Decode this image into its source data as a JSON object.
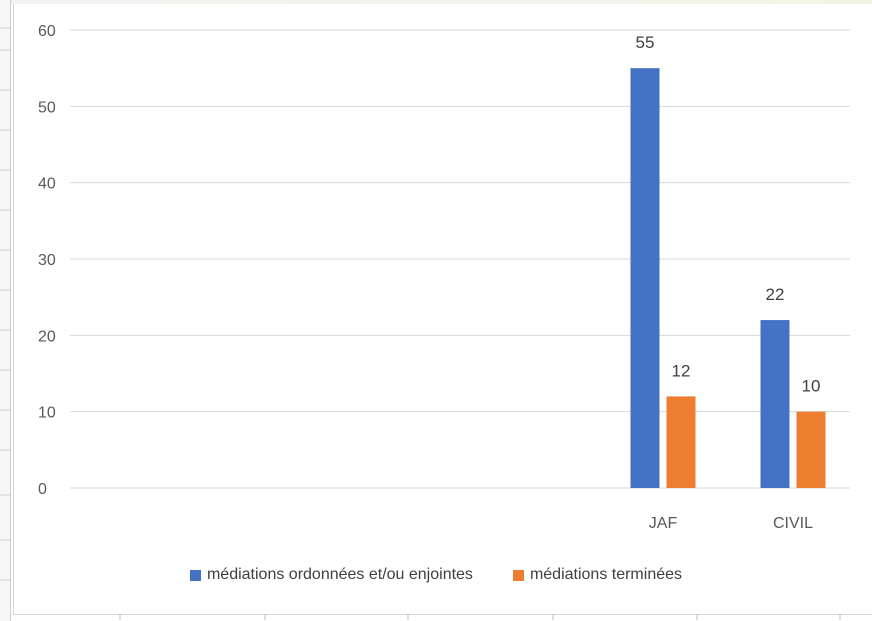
{
  "chart_data": {
    "type": "bar",
    "categories": [
      "",
      "",
      "",
      "",
      "JAF",
      "CIVIL"
    ],
    "series": [
      {
        "name": "médiations ordonnées et/ou enjointes",
        "color": "#4472C4",
        "values": [
          null,
          null,
          null,
          null,
          55,
          22
        ]
      },
      {
        "name": "médiations terminées",
        "color": "#ED7D31",
        "values": [
          null,
          null,
          null,
          null,
          12,
          10
        ]
      }
    ],
    "ylim": [
      0,
      60
    ],
    "yticks": [
      "0",
      "10",
      "20",
      "30",
      "40",
      "50",
      "60"
    ],
    "title": "",
    "xlabel": "",
    "ylabel": "",
    "grid": true,
    "legend_position": "bottom"
  }
}
